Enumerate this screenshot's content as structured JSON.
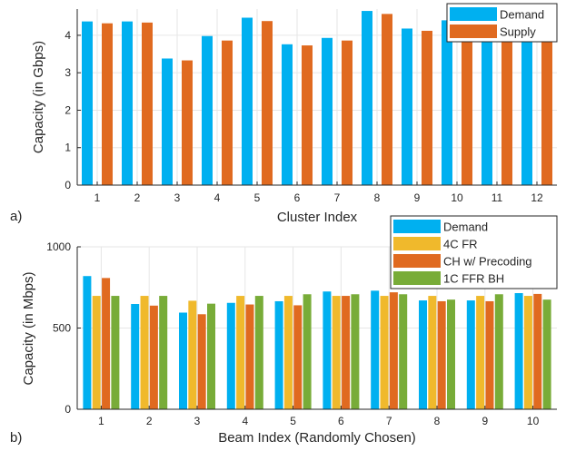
{
  "panel_labels": [
    "a)",
    "b)"
  ],
  "colors": {
    "demand": "#00b0f0",
    "supply": "#e06a20",
    "fr4c": "#f0b92c",
    "ch_precoding": "#e06a20",
    "ffr1c_bh": "#78ac38",
    "grid": "#e6e6e6",
    "axis": "#262626"
  },
  "chart_data": [
    {
      "type": "bar",
      "panel": "a)",
      "xlabel": "Cluster Index",
      "ylabel": "Capacity (in Gbps)",
      "categories": [
        "1",
        "2",
        "3",
        "4",
        "5",
        "6",
        "7",
        "8",
        "9",
        "10",
        "11",
        "12"
      ],
      "ylim": [
        0,
        4.7
      ],
      "yticks": [
        0,
        1,
        2,
        3,
        4
      ],
      "grid": true,
      "legend_position": "top-right",
      "series": [
        {
          "name": "Demand",
          "color": "#00b0f0",
          "values": [
            4.37,
            4.37,
            3.38,
            3.98,
            4.47,
            3.76,
            3.93,
            4.65,
            4.18,
            4.4,
            4.37,
            4.33
          ]
        },
        {
          "name": "Supply",
          "color": "#e06a20",
          "values": [
            4.32,
            4.34,
            3.33,
            3.86,
            4.38,
            3.73,
            3.86,
            4.57,
            4.12,
            4.34,
            4.32,
            4.3
          ]
        }
      ]
    },
    {
      "type": "bar",
      "panel": "b)",
      "xlabel": "Beam Index (Randomly Chosen)",
      "ylabel": "Capacity (in Mbps)",
      "categories": [
        "1",
        "2",
        "3",
        "4",
        "5",
        "6",
        "7",
        "8",
        "9",
        "10"
      ],
      "ylim": [
        0,
        1000
      ],
      "yticks": [
        0,
        500,
        1000
      ],
      "grid": true,
      "legend_position": "top-right",
      "series": [
        {
          "name": "Demand",
          "color": "#00b0f0",
          "values": [
            820,
            648,
            595,
            655,
            665,
            725,
            730,
            670,
            670,
            715
          ]
        },
        {
          "name": "4C FR",
          "color": "#f0b92c",
          "values": [
            698,
            698,
            668,
            698,
            698,
            698,
            698,
            698,
            698,
            698
          ]
        },
        {
          "name": "CH w/ Precoding",
          "color": "#e06a20",
          "values": [
            808,
            638,
            585,
            645,
            640,
            698,
            720,
            665,
            665,
            710
          ]
        },
        {
          "name": "1C FFR BH",
          "color": "#78ac38",
          "values": [
            698,
            698,
            650,
            698,
            708,
            708,
            708,
            675,
            708,
            675
          ]
        }
      ]
    }
  ]
}
